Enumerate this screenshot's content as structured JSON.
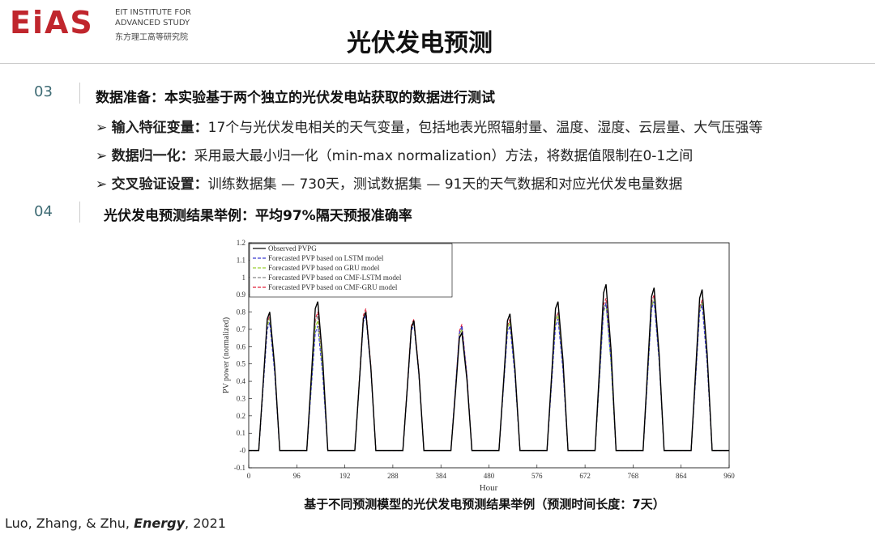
{
  "logo": {
    "mark": "EiAS",
    "line1": "EIT INSTITUTE FOR",
    "line2": "ADVANCED STUDY",
    "line3": "东方理工高等研究院"
  },
  "title": "光伏发电预测",
  "sections": [
    {
      "number": "03",
      "heading": "数据准备：本实验基于两个独立的光伏发电站获取的数据进行测试",
      "bullets": [
        {
          "label": "输入特征变量：",
          "text": "17个与光伏发电相关的天气变量，包括地表光照辐射量、温度、湿度、云层量、大气压强等"
        },
        {
          "label": "数据归一化：",
          "text": "采用最大最小归一化（min-max normalization）方法，将数据值限制在0-1之间"
        },
        {
          "label": "交叉验证设置：",
          "text": "训练数据集 — 730天，测试数据集 — 91天的天气数据和对应光伏发电量数据"
        }
      ]
    },
    {
      "number": "04",
      "heading": "光伏发电预测结果举例：平均97%隔天预报准确率",
      "bullets": []
    }
  ],
  "caption": "基于不同预测模型的光伏发电预测结果举例（预测时间长度：7天）",
  "citation": {
    "authors": "Luo, Zhang, & Zhu, ",
    "journal": "Energy",
    "year": ", 2021"
  },
  "chart_data": {
    "type": "line",
    "x_label": "Hour",
    "y_label": "PV power (normalized)",
    "xlim": [
      0,
      960
    ],
    "xticks": [
      0,
      96,
      192,
      288,
      384,
      480,
      576,
      672,
      768,
      864,
      960
    ],
    "ylim": [
      -0.1,
      1.2
    ],
    "yticks": [
      -0.1,
      {
        "value": 0,
        "label": "-0"
      },
      0.1,
      0.2,
      0.3,
      0.4,
      0.5,
      0.6,
      0.7,
      0.8,
      0.9,
      1,
      1.1,
      1.2
    ],
    "legend": "upper left",
    "x": [
      0,
      20,
      30,
      37,
      42,
      52,
      62,
      116,
      126,
      133,
      138,
      148,
      158,
      212,
      222,
      229,
      234,
      244,
      254,
      308,
      318,
      325,
      330,
      340,
      350,
      404,
      414,
      421,
      426,
      436,
      446,
      500,
      510,
      517,
      522,
      532,
      542,
      596,
      606,
      613,
      618,
      628,
      638,
      692,
      702,
      709,
      714,
      724,
      734,
      788,
      798,
      805,
      810,
      820,
      830,
      884,
      894,
      901,
      906,
      916,
      926,
      960
    ],
    "series": [
      {
        "name": "Observed PVPG",
        "color": "#000000",
        "line_style": "solid",
        "values": [
          0,
          0,
          0.44,
          0.76,
          0.8,
          0.48,
          0,
          0,
          0.47,
          0.82,
          0.86,
          0.52,
          0,
          0,
          0.44,
          0.76,
          0.8,
          0.48,
          0,
          0,
          0.41,
          0.71,
          0.75,
          0.45,
          0,
          0,
          0.37,
          0.65,
          0.68,
          0.41,
          0,
          0,
          0.43,
          0.75,
          0.79,
          0.47,
          0,
          0,
          0.47,
          0.82,
          0.86,
          0.52,
          0,
          0,
          0.53,
          0.91,
          0.96,
          0.58,
          0,
          0,
          0.52,
          0.89,
          0.94,
          0.56,
          0,
          0,
          0.51,
          0.88,
          0.93,
          0.56,
          0,
          0
        ]
      },
      {
        "name": "Forecasted PVP based on LSTM model",
        "color": "#3a3ad0",
        "line_style": "dashed",
        "values": [
          0,
          0,
          0.41,
          0.7,
          0.74,
          0.44,
          0,
          0,
          0.4,
          0.68,
          0.72,
          0.43,
          0,
          0,
          0.43,
          0.74,
          0.78,
          0.47,
          0,
          0,
          0.4,
          0.69,
          0.73,
          0.44,
          0,
          0,
          0.4,
          0.68,
          0.72,
          0.43,
          0,
          0,
          0.4,
          0.68,
          0.72,
          0.43,
          0,
          0,
          0.42,
          0.72,
          0.76,
          0.46,
          0,
          0,
          0.47,
          0.81,
          0.85,
          0.51,
          0,
          0,
          0.47,
          0.82,
          0.86,
          0.52,
          0,
          0,
          0.46,
          0.8,
          0.84,
          0.5,
          0,
          0
        ]
      },
      {
        "name": "Forecasted PVP based on GRU model",
        "color": "#9acd32",
        "line_style": "dashed",
        "values": [
          0,
          0,
          0.42,
          0.72,
          0.76,
          0.46,
          0,
          0,
          0.41,
          0.71,
          0.75,
          0.45,
          0,
          0,
          0.44,
          0.76,
          0.8,
          0.48,
          0,
          0,
          0.41,
          0.7,
          0.74,
          0.44,
          0,
          0,
          0.39,
          0.67,
          0.7,
          0.42,
          0,
          0,
          0.41,
          0.7,
          0.74,
          0.44,
          0,
          0,
          0.43,
          0.74,
          0.78,
          0.47,
          0,
          0,
          0.46,
          0.8,
          0.84,
          0.5,
          0,
          0,
          0.48,
          0.83,
          0.87,
          0.52,
          0,
          0,
          0.47,
          0.81,
          0.85,
          0.51,
          0,
          0
        ]
      },
      {
        "name": "Forecasted PVP based on CMF-LSTM model",
        "color": "#888888",
        "line_style": "dashed",
        "values": [
          0,
          0,
          0.42,
          0.73,
          0.77,
          0.46,
          0,
          0,
          0.43,
          0.74,
          0.78,
          0.47,
          0,
          0,
          0.44,
          0.76,
          0.8,
          0.48,
          0,
          0,
          0.41,
          0.71,
          0.75,
          0.45,
          0,
          0,
          0.39,
          0.67,
          0.71,
          0.43,
          0,
          0,
          0.41,
          0.71,
          0.75,
          0.45,
          0,
          0,
          0.44,
          0.76,
          0.8,
          0.48,
          0,
          0,
          0.47,
          0.82,
          0.86,
          0.52,
          0,
          0,
          0.48,
          0.84,
          0.88,
          0.53,
          0,
          0,
          0.47,
          0.82,
          0.86,
          0.52,
          0,
          0
        ]
      },
      {
        "name": "Forecasted PVP based on CMF-GRU model",
        "color": "#e0203a",
        "line_style": "dashed",
        "values": [
          0,
          0,
          0.43,
          0.74,
          0.78,
          0.47,
          0,
          0,
          0.44,
          0.76,
          0.8,
          0.48,
          0,
          0,
          0.45,
          0.78,
          0.82,
          0.49,
          0,
          0,
          0.42,
          0.72,
          0.76,
          0.46,
          0,
          0,
          0.4,
          0.69,
          0.73,
          0.44,
          0,
          0,
          0.42,
          0.72,
          0.76,
          0.46,
          0,
          0,
          0.44,
          0.76,
          0.8,
          0.48,
          0,
          0,
          0.48,
          0.84,
          0.88,
          0.53,
          0,
          0,
          0.5,
          0.86,
          0.9,
          0.54,
          0,
          0,
          0.48,
          0.83,
          0.87,
          0.52,
          0,
          0
        ]
      }
    ]
  }
}
